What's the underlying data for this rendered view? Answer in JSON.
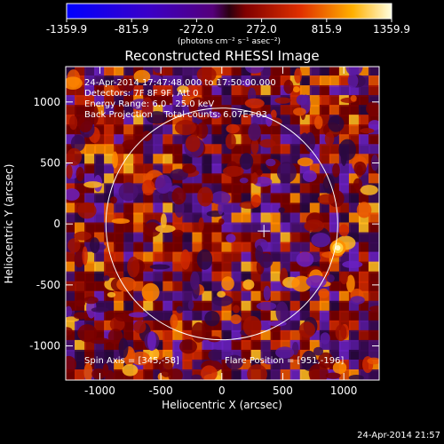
{
  "chart_data": {
    "type": "heatmap",
    "title": "Reconstructed RHESSI Image",
    "xlabel": "Heliocentric X (arcsec)",
    "ylabel": "Heliocentric Y (arcsec)",
    "xlim": [
      -1280,
      1290
    ],
    "ylim": [
      -1280,
      1290
    ],
    "x_ticks": [
      -1000,
      -500,
      0,
      500,
      1000
    ],
    "y_ticks": [
      -1000,
      -500,
      0,
      500,
      1000
    ],
    "colorbar": {
      "ticks": [
        "-1359.9",
        "-815.9",
        "-272.0",
        "272.0",
        "815.9",
        "1359.9"
      ],
      "min": -1359.9,
      "max": 1359.9,
      "unit_label": "(photons cm⁻² s⁻¹ asec⁻²)"
    },
    "annotations": [
      "24-Apr-2014 17:47:48.000 to 17:50:00.000",
      "Detectors: 7F 8F 9F, Att 0",
      "Energy Range: 6.0 - 25.0 keV",
      "Back Projection    Total counts: 6.07E+03"
    ],
    "spin_axis": "Spin Axis = [345,-58]",
    "flare_position": "Flare Position = [951,-196]",
    "solar_limb": {
      "center": [
        0,
        0
      ],
      "radius": 950
    },
    "center_cross": [
      345,
      -58
    ],
    "colors": {
      "background": "#000000",
      "limb": "#ffffff"
    }
  },
  "footer_date": "24-Apr-2014 21:57"
}
